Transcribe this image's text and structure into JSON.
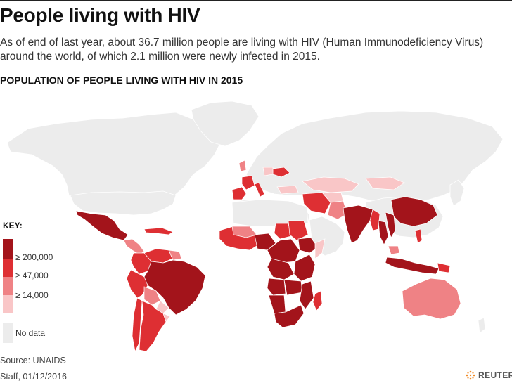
{
  "header": {
    "title": "People living with HIV",
    "subtitle": "As of end of last year, about 36.7 million people are living with HIV (Human Immunodeficiency Virus) around the world, of which 2.1 million were newly infected in 2015.",
    "map_title": "POPULATION OF PEOPLE LIVING WITH HIV IN 2015"
  },
  "legend": {
    "title": "KEY:",
    "items": [
      {
        "label": "≥ 200,000",
        "color": "#a3141b"
      },
      {
        "label": "≥ 47,000",
        "color": "#de2f33"
      },
      {
        "label": "≥ 14,000",
        "color": "#ef8285"
      },
      {
        "label": "",
        "color": "#f9c6c7"
      }
    ],
    "no_data_label": "No data",
    "no_data_color": "#ececec"
  },
  "map": {
    "background_color": "#ececec"
  },
  "footer": {
    "source": "Source: UNAIDS",
    "credit": "Staff, 01/12/2016",
    "logo_text": "REUTERS"
  }
}
